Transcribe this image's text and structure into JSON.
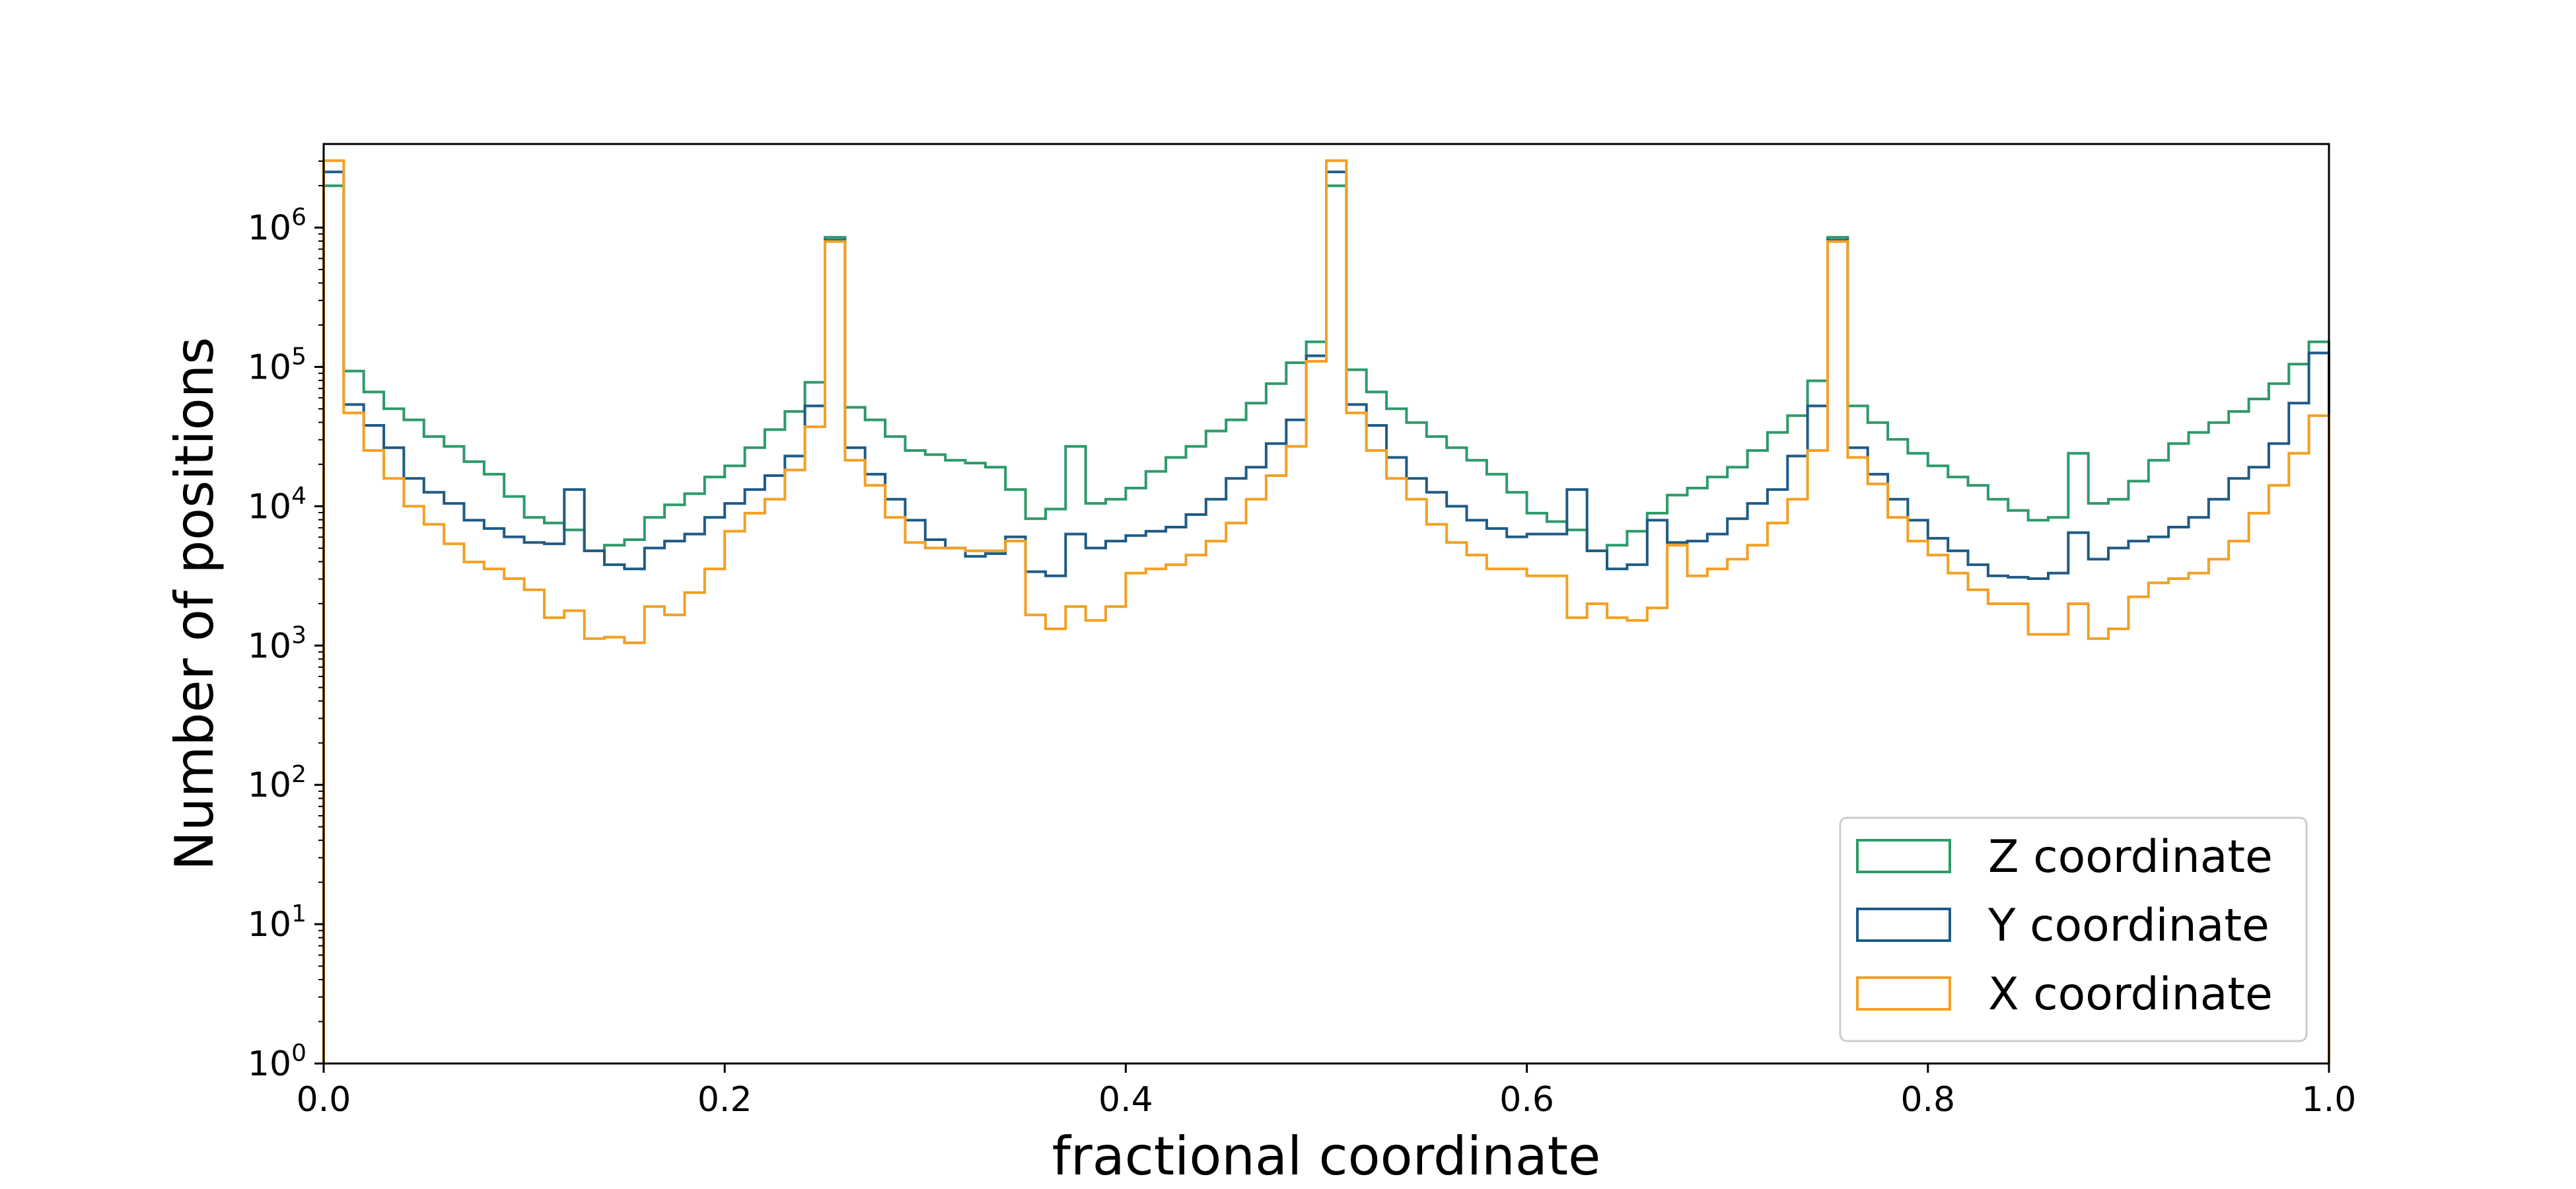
{
  "chart_data": {
    "type": "histogram",
    "title": "",
    "xlabel": "fractional coordinate",
    "ylabel": "Number of positions",
    "xlim": [
      0,
      1
    ],
    "yscale": "log",
    "ylim_log10": [
      0,
      6.6
    ],
    "x_ticks": [
      {
        "value": 0.0,
        "label": "0.0"
      },
      {
        "value": 0.2,
        "label": "0.2"
      },
      {
        "value": 0.4,
        "label": "0.4"
      },
      {
        "value": 0.6,
        "label": "0.6"
      },
      {
        "value": 0.8,
        "label": "0.8"
      },
      {
        "value": 1.0,
        "label": "1.0"
      }
    ],
    "y_ticks": [
      {
        "exp": 0,
        "base": "10",
        "sup": "0"
      },
      {
        "exp": 1,
        "base": "10",
        "sup": "1"
      },
      {
        "exp": 2,
        "base": "10",
        "sup": "2"
      },
      {
        "exp": 3,
        "base": "10",
        "sup": "3"
      },
      {
        "exp": 4,
        "base": "10",
        "sup": "4"
      },
      {
        "exp": 5,
        "base": "10",
        "sup": "5"
      },
      {
        "exp": 6,
        "base": "10",
        "sup": "6"
      }
    ],
    "legend_position": "lower-right",
    "bins": 100,
    "bin_width": 0.01,
    "series": [
      {
        "name": "Z coordinate",
        "color": "#2e9a6a",
        "log10_counts": [
          6.3,
          4.97,
          4.82,
          4.7,
          4.62,
          4.5,
          4.43,
          4.32,
          4.23,
          4.07,
          3.92,
          3.88,
          3.83,
          3.68,
          3.72,
          3.76,
          3.92,
          4.01,
          4.09,
          4.21,
          4.29,
          4.42,
          4.55,
          4.68,
          4.89,
          5.93,
          4.71,
          4.62,
          4.5,
          4.4,
          4.37,
          4.33,
          4.31,
          4.28,
          4.12,
          3.91,
          3.98,
          4.43,
          4.02,
          4.05,
          4.13,
          4.25,
          4.35,
          4.43,
          4.54,
          4.62,
          4.74,
          4.88,
          5.03,
          5.18,
          6.3,
          4.98,
          4.82,
          4.7,
          4.6,
          4.5,
          4.42,
          4.33,
          4.23,
          4.1,
          3.95,
          3.89,
          3.83,
          3.68,
          3.72,
          3.82,
          3.95,
          4.08,
          4.13,
          4.21,
          4.28,
          4.4,
          4.53,
          4.65,
          4.9,
          5.93,
          4.72,
          4.6,
          4.48,
          4.38,
          4.29,
          4.21,
          4.15,
          4.05,
          3.97,
          3.9,
          3.92,
          4.38,
          4.02,
          4.05,
          4.18,
          4.33,
          4.45,
          4.53,
          4.6,
          4.68,
          4.77,
          4.88,
          5.02,
          5.18
        ]
      },
      {
        "name": "Y coordinate",
        "color": "#1f5b86",
        "log10_counts": [
          6.4,
          4.73,
          4.58,
          4.42,
          4.2,
          4.1,
          4.02,
          3.9,
          3.84,
          3.78,
          3.74,
          3.73,
          4.12,
          3.68,
          3.58,
          3.55,
          3.7,
          3.75,
          3.8,
          3.92,
          4.02,
          4.12,
          4.22,
          4.36,
          4.72,
          5.91,
          4.42,
          4.23,
          4.05,
          3.9,
          3.76,
          3.7,
          3.64,
          3.66,
          3.78,
          3.53,
          3.5,
          3.8,
          3.7,
          3.75,
          3.79,
          3.82,
          3.85,
          3.94,
          4.05,
          4.2,
          4.28,
          4.45,
          4.62,
          5.08,
          6.4,
          4.73,
          4.58,
          4.35,
          4.2,
          4.1,
          4.0,
          3.9,
          3.84,
          3.78,
          3.8,
          3.8,
          4.12,
          3.68,
          3.55,
          3.58,
          3.9,
          3.74,
          3.75,
          3.8,
          3.91,
          4.02,
          4.12,
          4.36,
          4.72,
          5.91,
          4.42,
          4.23,
          4.05,
          3.9,
          3.77,
          3.68,
          3.58,
          3.5,
          3.49,
          3.48,
          3.52,
          3.81,
          3.62,
          3.7,
          3.75,
          3.78,
          3.85,
          3.92,
          4.05,
          4.2,
          4.28,
          4.45,
          4.74,
          5.1
        ]
      },
      {
        "name": "X coordinate",
        "color": "#f2a024",
        "log10_counts": [
          6.48,
          4.67,
          4.4,
          4.2,
          4.0,
          3.87,
          3.73,
          3.6,
          3.55,
          3.48,
          3.4,
          3.2,
          3.25,
          3.05,
          3.06,
          3.02,
          3.28,
          3.22,
          3.38,
          3.55,
          3.82,
          3.95,
          4.05,
          4.26,
          4.57,
          5.9,
          4.33,
          4.15,
          3.92,
          3.74,
          3.7,
          3.7,
          3.68,
          3.68,
          3.75,
          3.22,
          3.12,
          3.28,
          3.18,
          3.28,
          3.52,
          3.55,
          3.58,
          3.65,
          3.75,
          3.88,
          4.05,
          4.22,
          4.43,
          5.04,
          6.48,
          4.67,
          4.4,
          4.2,
          4.05,
          3.87,
          3.74,
          3.65,
          3.55,
          3.55,
          3.5,
          3.5,
          3.2,
          3.3,
          3.2,
          3.18,
          3.27,
          3.72,
          3.5,
          3.55,
          3.62,
          3.72,
          3.88,
          4.05,
          4.4,
          5.9,
          4.35,
          4.16,
          3.92,
          3.75,
          3.65,
          3.52,
          3.4,
          3.3,
          3.3,
          3.08,
          3.08,
          3.3,
          3.05,
          3.12,
          3.35,
          3.45,
          3.48,
          3.52,
          3.62,
          3.75,
          3.95,
          4.15,
          4.38,
          4.65
        ]
      }
    ]
  }
}
